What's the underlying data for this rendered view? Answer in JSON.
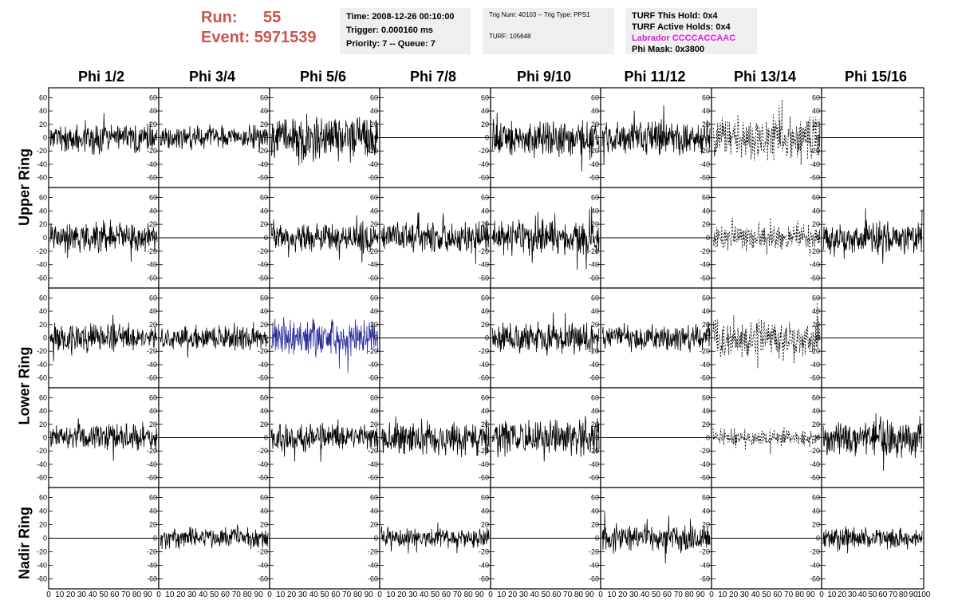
{
  "header": {
    "run_label": "Run:",
    "run_value": "55",
    "event_label": "Event:",
    "event_value": "5971539",
    "time": "Time: 2008-12-26 00:10:00",
    "trigger": "Trigger: 0.000160 ms",
    "priority": "Priority: 7 -- Queue: 7",
    "trig_num": "Trig Num: 40103 -- Trig Type: PPS1",
    "turf": "TURF: 105648",
    "turf_hold": "TURF This Hold: 0x4",
    "turf_active": "TURF Active Holds: 0x4",
    "labrador": "Labrador CCCCACCAAC",
    "phi_mask": "Phi Mask: 0x3800"
  },
  "colors": {
    "accent_red": "#c8554e",
    "labrador": "#e020e0",
    "highlight_trace": "#2b2b9a"
  },
  "columns": [
    "Phi 1/2",
    "Phi 3/4",
    "Phi 5/6",
    "Phi 7/8",
    "Phi 9/10",
    "Phi 11/12",
    "Phi 13/14",
    "Phi 15/16"
  ],
  "rings": [
    "Upper Ring",
    "Lower Ring",
    "Nadir Ring"
  ],
  "chart_data": {
    "type": "line",
    "grid": "8 columns x 5 rows of waveform panels",
    "ylim": [
      -70,
      70
    ],
    "y_ticks": [
      -60,
      -40,
      -20,
      0,
      20,
      40,
      60
    ],
    "xlim": [
      0,
      100
    ],
    "x_tick_labels": [
      "0",
      "10",
      "20",
      "30",
      "40",
      "50",
      "60",
      "70",
      "80",
      "90",
      "100"
    ],
    "panels": [
      {
        "row": 0,
        "col": 0,
        "trace": "noise",
        "amp": 18,
        "seed": 11
      },
      {
        "row": 0,
        "col": 1,
        "trace": "noise",
        "amp": 14,
        "seed": 12
      },
      {
        "row": 0,
        "col": 2,
        "trace": "noise",
        "amp": 26,
        "seed": 13
      },
      {
        "row": 0,
        "col": 3,
        "trace": "flat"
      },
      {
        "row": 0,
        "col": 4,
        "trace": "noise",
        "amp": 22,
        "seed": 15
      },
      {
        "row": 0,
        "col": 5,
        "trace": "noise",
        "amp": 20,
        "seed": 16
      },
      {
        "row": 0,
        "col": 6,
        "trace": "dashed",
        "amp": 26,
        "seed": 17
      },
      {
        "row": 0,
        "col": 7,
        "trace": "flat"
      },
      {
        "row": 1,
        "col": 0,
        "trace": "noise",
        "amp": 18,
        "seed": 21
      },
      {
        "row": 1,
        "col": 1,
        "trace": "flat"
      },
      {
        "row": 1,
        "col": 2,
        "trace": "noise",
        "amp": 18,
        "seed": 23
      },
      {
        "row": 1,
        "col": 3,
        "trace": "noise",
        "amp": 18,
        "seed": 24
      },
      {
        "row": 1,
        "col": 4,
        "trace": "noise",
        "amp": 20,
        "seed": 25
      },
      {
        "row": 1,
        "col": 5,
        "trace": "flat"
      },
      {
        "row": 1,
        "col": 6,
        "trace": "dashed",
        "amp": 14,
        "seed": 27
      },
      {
        "row": 1,
        "col": 7,
        "trace": "noise",
        "amp": 18,
        "seed": 28
      },
      {
        "row": 2,
        "col": 0,
        "trace": "noise",
        "amp": 16,
        "seed": 31
      },
      {
        "row": 2,
        "col": 1,
        "trace": "noise",
        "amp": 14,
        "seed": 32
      },
      {
        "row": 2,
        "col": 2,
        "trace": "blue",
        "amp": 22,
        "seed": 33
      },
      {
        "row": 2,
        "col": 3,
        "trace": "flat"
      },
      {
        "row": 2,
        "col": 4,
        "trace": "noise",
        "amp": 18,
        "seed": 35
      },
      {
        "row": 2,
        "col": 5,
        "trace": "noise",
        "amp": 16,
        "seed": 36
      },
      {
        "row": 2,
        "col": 6,
        "trace": "dashed",
        "amp": 22,
        "seed": 37
      },
      {
        "row": 2,
        "col": 7,
        "trace": "flat"
      },
      {
        "row": 3,
        "col": 0,
        "trace": "noise",
        "amp": 16,
        "seed": 41
      },
      {
        "row": 3,
        "col": 1,
        "trace": "flat"
      },
      {
        "row": 3,
        "col": 2,
        "trace": "noise",
        "amp": 16,
        "seed": 43
      },
      {
        "row": 3,
        "col": 3,
        "trace": "noise",
        "amp": 20,
        "seed": 44
      },
      {
        "row": 3,
        "col": 4,
        "trace": "noise",
        "amp": 22,
        "seed": 45
      },
      {
        "row": 3,
        "col": 5,
        "trace": "flat"
      },
      {
        "row": 3,
        "col": 6,
        "trace": "dashed",
        "amp": 10,
        "seed": 47
      },
      {
        "row": 3,
        "col": 7,
        "trace": "noise",
        "amp": 22,
        "seed": 48
      },
      {
        "row": 4,
        "col": 0,
        "trace": "flat"
      },
      {
        "row": 4,
        "col": 1,
        "trace": "noise",
        "amp": 12,
        "seed": 52
      },
      {
        "row": 4,
        "col": 2,
        "trace": "flat"
      },
      {
        "row": 4,
        "col": 3,
        "trace": "noise",
        "amp": 12,
        "seed": 54
      },
      {
        "row": 4,
        "col": 4,
        "trace": "flat"
      },
      {
        "row": 4,
        "col": 5,
        "trace": "noise",
        "amp": 16,
        "seed": 56
      },
      {
        "row": 4,
        "col": 6,
        "trace": "flat"
      },
      {
        "row": 4,
        "col": 7,
        "trace": "noise",
        "amp": 12,
        "seed": 58
      }
    ]
  }
}
